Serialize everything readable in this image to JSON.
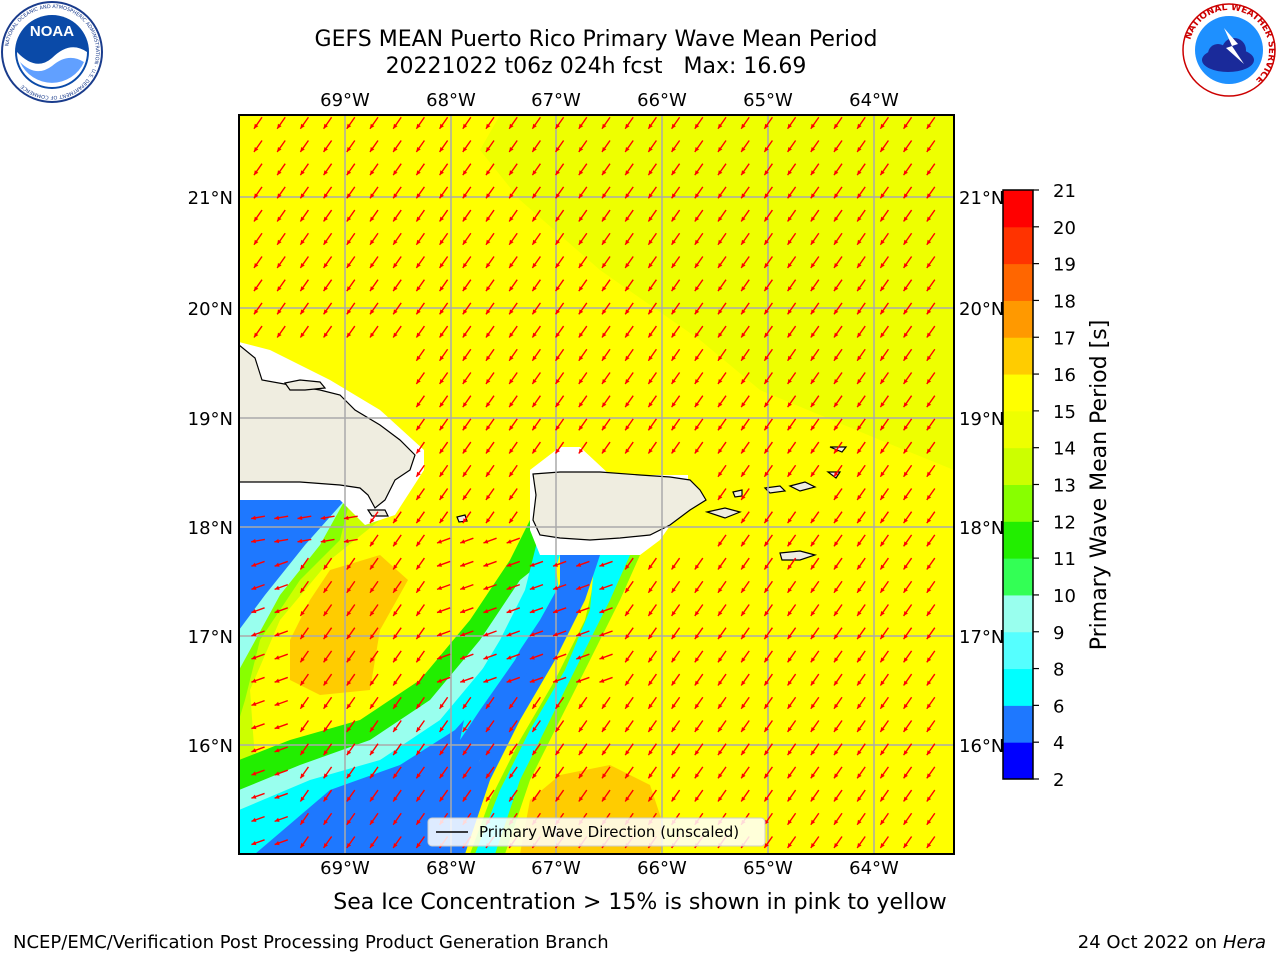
{
  "header": {
    "title_line1": "GEFS MEAN Puerto Rico Primary Wave Mean Period",
    "title_line2": "20221022 t06z 024h fcst",
    "max_label": "Max: 16.69"
  },
  "logos": {
    "noaa_text": "NOAA",
    "noaa_ring": "NATIONAL OCEANIC AND ATMOSPHERIC ADMINISTRATION · U.S. DEPARTMENT OF COMMERCE",
    "nws_ring": "NATIONAL WEATHER SERVICE"
  },
  "map": {
    "lon_labels": [
      "69°W",
      "68°W",
      "67°W",
      "66°W",
      "65°W",
      "64°W"
    ],
    "lat_labels": [
      "21°N",
      "20°N",
      "19°N",
      "18°N",
      "17°N",
      "16°N"
    ],
    "legend_label": "Primary Wave Direction (unscaled)",
    "arrow_color": "#ff0000",
    "land_color": "#efede0",
    "base_color": "#ffff00"
  },
  "colorbar": {
    "label": "Primary Wave Mean Period [s]",
    "ticks": [
      "2",
      "4",
      "6",
      "8",
      "9",
      "10",
      "11",
      "12",
      "13",
      "14",
      "15",
      "16",
      "17",
      "18",
      "19",
      "20",
      "21"
    ],
    "colors": [
      "#0000ff",
      "#1e78ff",
      "#00ffff",
      "#55ffff",
      "#99ffee",
      "#33ff55",
      "#22ee00",
      "#88ff00",
      "#ccff00",
      "#eeff00",
      "#ffff00",
      "#ffcc00",
      "#ff9900",
      "#ff6600",
      "#ff3300",
      "#ff0000"
    ]
  },
  "caption": "Sea Ice Concentration > 15% is shown in pink to yellow",
  "footer": {
    "left": "NCEP/EMC/Verification Post Processing Product Generation Branch",
    "right_prefix": "24 Oct 2022 on",
    "right_host": "Hera"
  }
}
